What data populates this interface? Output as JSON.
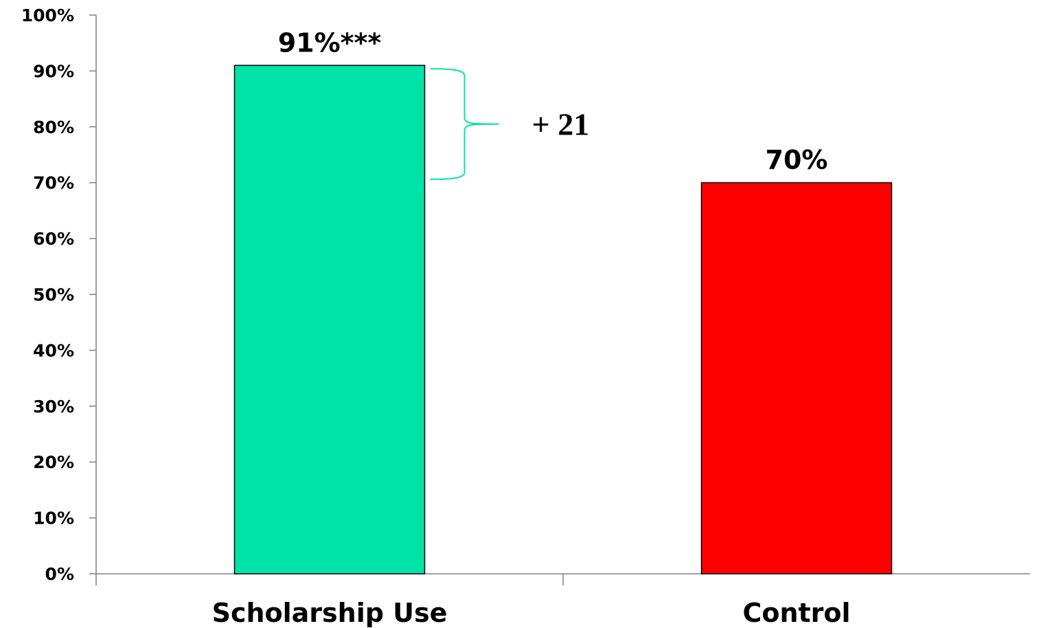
{
  "chart_data": {
    "type": "bar",
    "categories": [
      "Scholarship Use",
      "Control"
    ],
    "values": [
      91,
      70
    ],
    "data_labels": [
      "91%***",
      "70%"
    ],
    "colors": [
      "#00e3a8",
      "#ff0000"
    ],
    "ylim": [
      0,
      100
    ],
    "yticks": [
      0,
      10,
      20,
      30,
      40,
      50,
      60,
      70,
      80,
      90,
      100
    ],
    "ytick_labels": [
      "0%",
      "10%",
      "20%",
      "30%",
      "40%",
      "50%",
      "60%",
      "70%",
      "80%",
      "90%",
      "100%"
    ],
    "grid": false,
    "annotation": {
      "text": "+ 21",
      "from_value": 70,
      "to_value": 91,
      "color": "#00e3a8"
    }
  }
}
